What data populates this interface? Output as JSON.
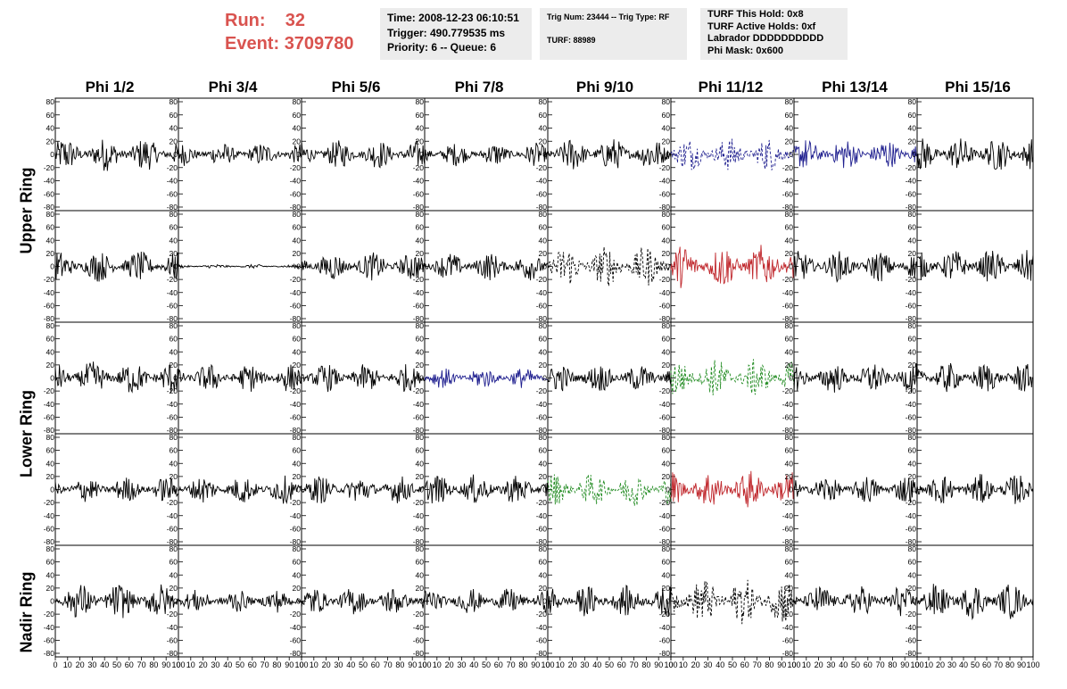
{
  "run": {
    "run_label": "Run:",
    "run_value": "32",
    "event_label": "Event:",
    "event_value": "3709780"
  },
  "time_box": {
    "time": "Time: 2008-12-23 06:10:51",
    "trigger": "Trigger: 490.779535 ms",
    "priority": "Priority: 6 -- Queue: 6"
  },
  "trig_box": {
    "trig": "Trig Num: 23444 -- Trig Type: RF",
    "turf": "TURF: 88989"
  },
  "turf_box": {
    "this_hold": "TURF This Hold: 0x8",
    "active_holds": "TURF Active Holds: 0xf",
    "labrador": "Labrador DDDDDDDDDD",
    "phi_mask": "Phi Mask: 0x600"
  },
  "columns": [
    "Phi 1/2",
    "Phi 3/4",
    "Phi 5/6",
    "Phi 7/8",
    "Phi 9/10",
    "Phi 11/12",
    "Phi 13/14",
    "Phi 15/16"
  ],
  "ring_labels": [
    "Upper Ring",
    "Lower Ring",
    "Nadir Ring"
  ],
  "y_ticks": [
    80,
    60,
    40,
    20,
    0,
    -20,
    -40,
    -60,
    -80
  ],
  "x_tick_labels": [
    "0",
    "10",
    "20",
    "30",
    "40",
    "50",
    "60",
    "70",
    "80",
    "90",
    "100"
  ],
  "colors": {
    "black": "#000000",
    "blue": "#1f1f8f",
    "red": "#c0282d",
    "green": "#1f8a1f",
    "run_text": "#d9534f"
  },
  "chart_data": {
    "type": "line",
    "ylim": [
      -80,
      80
    ],
    "xlim": [
      0,
      100
    ],
    "panels": [
      [
        {
          "color": "black",
          "amp": 26,
          "dashed": false
        },
        {
          "color": "black",
          "amp": 18,
          "dashed": false
        },
        {
          "color": "black",
          "amp": 22,
          "dashed": false
        },
        {
          "color": "black",
          "amp": 18,
          "dashed": false
        },
        {
          "color": "black",
          "amp": 26,
          "dashed": false
        },
        {
          "color": "blue",
          "amp": 26,
          "dashed": true
        },
        {
          "color": "blue",
          "amp": 24,
          "dashed": false
        },
        {
          "color": "black",
          "amp": 26,
          "dashed": false
        }
      ],
      [
        {
          "color": "black",
          "amp": 24,
          "dashed": false
        },
        {
          "color": "black",
          "amp": 3,
          "dashed": false
        },
        {
          "color": "black",
          "amp": 22,
          "dashed": false
        },
        {
          "color": "black",
          "amp": 22,
          "dashed": false
        },
        {
          "color": "black",
          "amp": 32,
          "dashed": true
        },
        {
          "color": "red",
          "amp": 34,
          "dashed": false
        },
        {
          "color": "black",
          "amp": 24,
          "dashed": false
        },
        {
          "color": "black",
          "amp": 26,
          "dashed": false
        }
      ],
      [
        {
          "color": "black",
          "amp": 26,
          "dashed": false
        },
        {
          "color": "black",
          "amp": 22,
          "dashed": false
        },
        {
          "color": "black",
          "amp": 22,
          "dashed": false
        },
        {
          "color": "blue",
          "amp": 16,
          "dashed": false
        },
        {
          "color": "black",
          "amp": 22,
          "dashed": false
        },
        {
          "color": "green",
          "amp": 30,
          "dashed": true
        },
        {
          "color": "black",
          "amp": 24,
          "dashed": false
        },
        {
          "color": "black",
          "amp": 24,
          "dashed": false
        }
      ],
      [
        {
          "color": "black",
          "amp": 20,
          "dashed": false
        },
        {
          "color": "black",
          "amp": 22,
          "dashed": false
        },
        {
          "color": "black",
          "amp": 22,
          "dashed": false
        },
        {
          "color": "black",
          "amp": 24,
          "dashed": false
        },
        {
          "color": "green",
          "amp": 26,
          "dashed": true
        },
        {
          "color": "red",
          "amp": 30,
          "dashed": false
        },
        {
          "color": "black",
          "amp": 22,
          "dashed": false
        },
        {
          "color": "black",
          "amp": 24,
          "dashed": false
        }
      ],
      [
        {
          "color": "black",
          "amp": 28,
          "dashed": false
        },
        {
          "color": "black",
          "amp": 18,
          "dashed": false
        },
        {
          "color": "black",
          "amp": 22,
          "dashed": false
        },
        {
          "color": "black",
          "amp": 20,
          "dashed": false
        },
        {
          "color": "black",
          "amp": 24,
          "dashed": false
        },
        {
          "color": "black",
          "amp": 36,
          "dashed": true
        },
        {
          "color": "black",
          "amp": 24,
          "dashed": false
        },
        {
          "color": "black",
          "amp": 28,
          "dashed": false
        }
      ]
    ]
  }
}
